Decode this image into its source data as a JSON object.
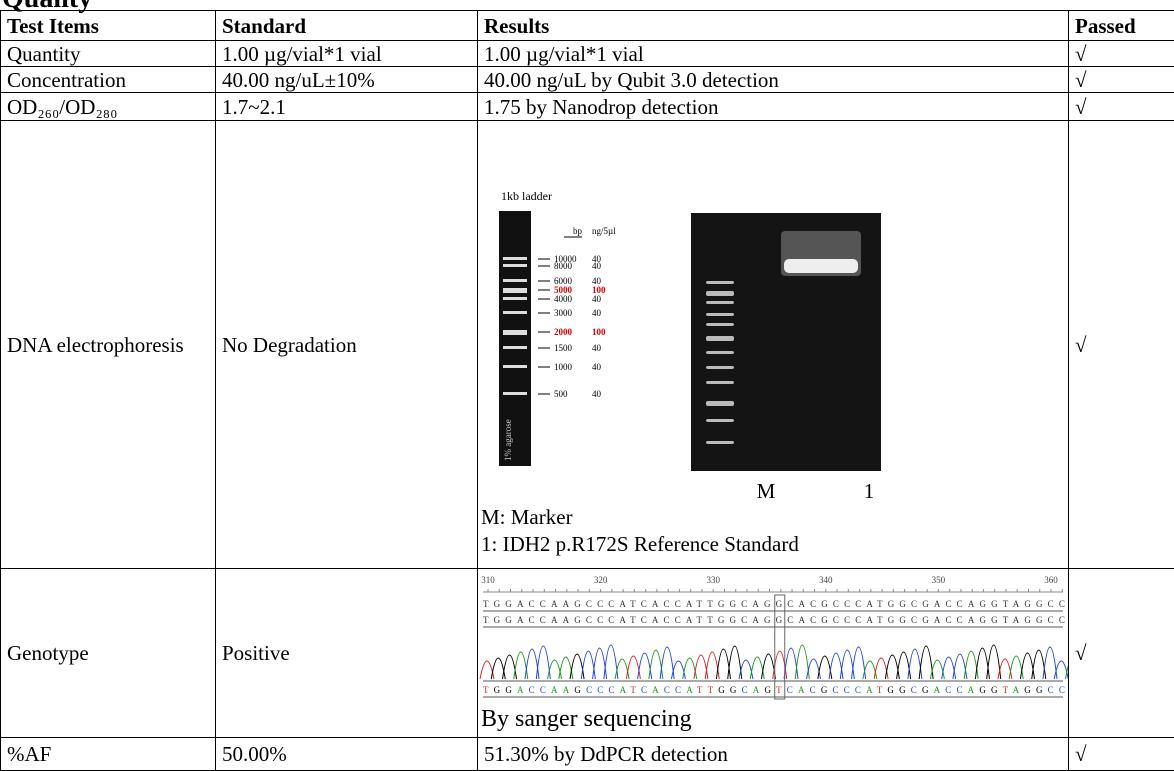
{
  "title": "Quality",
  "table": {
    "header": [
      "Test Items",
      "Standard",
      "Results",
      "Passed"
    ],
    "rows": [
      {
        "item": "Quantity",
        "standard": "1.00 µg/vial*1 vial",
        "result": "1.00 µg/vial*1 vial",
        "passed": "√"
      },
      {
        "item": "Concentration",
        "standard": "40.00 ng/uL±10%",
        "result": "40.00 ng/uL by Qubit 3.0 detection",
        "passed": "√"
      },
      {
        "item": "OD₂₆₀/OD₂₈₀",
        "standard": "1.7~2.1",
        "result": "1.75 by Nanodrop detection",
        "passed": "√"
      },
      {
        "item": "DNA electrophoresis",
        "standard": "No Degradation",
        "passed": "√"
      },
      {
        "item": "Genotype",
        "standard": "Positive",
        "passed": "√"
      },
      {
        "item": "%AF",
        "standard": "50.00%",
        "result": "51.30% by DdPCR detection",
        "passed": "√"
      }
    ]
  },
  "gel": {
    "ladder_title": "1kb ladder",
    "agarose": "1% agarose",
    "ladder_headers": [
      "bp",
      "ng/5µl"
    ],
    "ladder": [
      {
        "bp": "10000",
        "ng": "40"
      },
      {
        "bp": "8000",
        "ng": "40"
      },
      {
        "bp": "6000",
        "ng": "40"
      },
      {
        "bp": "5000",
        "ng": "100",
        "highlight": true
      },
      {
        "bp": "4000",
        "ng": "40"
      },
      {
        "bp": "3000",
        "ng": "40"
      },
      {
        "bp": "2000",
        "ng": "100",
        "highlight": true
      },
      {
        "bp": "1500",
        "ng": "40"
      },
      {
        "bp": "1000",
        "ng": "40"
      },
      {
        "bp": "500",
        "ng": "40"
      }
    ],
    "lane_labels": [
      "M",
      "1"
    ],
    "legend": [
      "M: Marker",
      "1: IDH2 p.R172S Reference Standard"
    ]
  },
  "sequencing": {
    "positions": [
      310,
      320,
      330,
      340,
      350,
      360
    ],
    "reference": "TGGACCAAGCCCATCACCATTGGCAGGCACGCCCATGGCGACCAGGTAGGCCA",
    "sample": "TGGACCAAGCCCATCACCATTGGCAGGCACGCCCATGGCGACCAGGTAGGCCA",
    "called": "TGGACCAAGCCCATCACCATTGGCAGTCACGCCCATGGCGACCAGGTAGGCCA",
    "note": "By sanger sequencing"
  }
}
